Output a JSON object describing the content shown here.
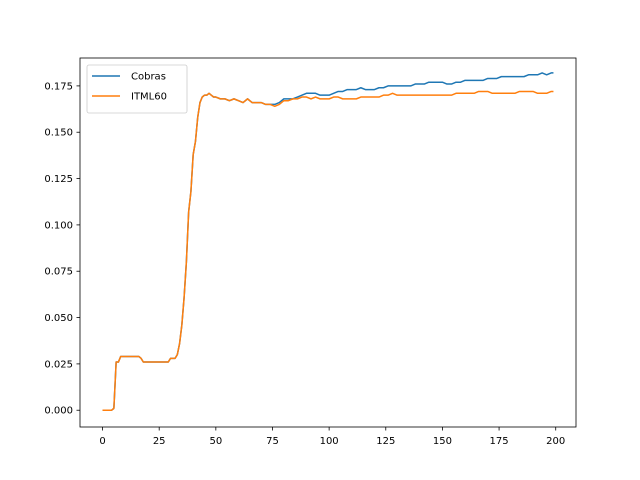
{
  "chart_data": {
    "type": "line",
    "title": "",
    "xlabel": "",
    "ylabel": "",
    "xlim": [
      -9.95,
      208.95
    ],
    "ylim": [
      -0.00905,
      0.19005
    ],
    "xticks": [
      0,
      25,
      50,
      75,
      100,
      125,
      150,
      175,
      200
    ],
    "yticks": [
      0.0,
      0.025,
      0.05,
      0.075,
      0.1,
      0.125,
      0.15,
      0.175
    ],
    "ytick_labels": [
      "0.000",
      "0.025",
      "0.050",
      "0.075",
      "0.100",
      "0.125",
      "0.150",
      "0.175"
    ],
    "grid": false,
    "legend_position": "top-left",
    "series": [
      {
        "name": "Cobras",
        "color": "#1f77b4",
        "points": [
          [
            0,
            0
          ],
          [
            1,
            0
          ],
          [
            2,
            0
          ],
          [
            3,
            0
          ],
          [
            4,
            0
          ],
          [
            5,
            0.001
          ],
          [
            6,
            0.026
          ],
          [
            7,
            0.026
          ],
          [
            8,
            0.029
          ],
          [
            9,
            0.029
          ],
          [
            10,
            0.029
          ],
          [
            11,
            0.029
          ],
          [
            12,
            0.029
          ],
          [
            13,
            0.029
          ],
          [
            14,
            0.029
          ],
          [
            15,
            0.029
          ],
          [
            16,
            0.029
          ],
          [
            17,
            0.028
          ],
          [
            18,
            0.026
          ],
          [
            19,
            0.026
          ],
          [
            20,
            0.026
          ],
          [
            21,
            0.026
          ],
          [
            22,
            0.026
          ],
          [
            23,
            0.026
          ],
          [
            24,
            0.026
          ],
          [
            25,
            0.026
          ],
          [
            26,
            0.026
          ],
          [
            27,
            0.026
          ],
          [
            28,
            0.026
          ],
          [
            29,
            0.026
          ],
          [
            30,
            0.028
          ],
          [
            31,
            0.028
          ],
          [
            32,
            0.028
          ],
          [
            33,
            0.03
          ],
          [
            34,
            0.036
          ],
          [
            35,
            0.046
          ],
          [
            36,
            0.061
          ],
          [
            37,
            0.08
          ],
          [
            38,
            0.107
          ],
          [
            39,
            0.118
          ],
          [
            40,
            0.138
          ],
          [
            41,
            0.145
          ],
          [
            42,
            0.158
          ],
          [
            43,
            0.166
          ],
          [
            44,
            0.169
          ],
          [
            45,
            0.17
          ],
          [
            46,
            0.17
          ],
          [
            47,
            0.171
          ],
          [
            48,
            0.17
          ],
          [
            49,
            0.169
          ],
          [
            50,
            0.169
          ],
          [
            52,
            0.168
          ],
          [
            54,
            0.168
          ],
          [
            56,
            0.167
          ],
          [
            58,
            0.168
          ],
          [
            60,
            0.167
          ],
          [
            62,
            0.166
          ],
          [
            64,
            0.168
          ],
          [
            66,
            0.166
          ],
          [
            68,
            0.166
          ],
          [
            70,
            0.166
          ],
          [
            72,
            0.165
          ],
          [
            74,
            0.165
          ],
          [
            76,
            0.165
          ],
          [
            78,
            0.166
          ],
          [
            80,
            0.168
          ],
          [
            82,
            0.168
          ],
          [
            84,
            0.168
          ],
          [
            86,
            0.169
          ],
          [
            88,
            0.17
          ],
          [
            90,
            0.171
          ],
          [
            92,
            0.171
          ],
          [
            94,
            0.171
          ],
          [
            96,
            0.17
          ],
          [
            98,
            0.17
          ],
          [
            100,
            0.17
          ],
          [
            102,
            0.171
          ],
          [
            104,
            0.172
          ],
          [
            106,
            0.172
          ],
          [
            108,
            0.173
          ],
          [
            110,
            0.173
          ],
          [
            112,
            0.173
          ],
          [
            114,
            0.174
          ],
          [
            116,
            0.173
          ],
          [
            118,
            0.173
          ],
          [
            120,
            0.173
          ],
          [
            122,
            0.174
          ],
          [
            124,
            0.174
          ],
          [
            126,
            0.175
          ],
          [
            128,
            0.175
          ],
          [
            130,
            0.175
          ],
          [
            132,
            0.175
          ],
          [
            134,
            0.175
          ],
          [
            136,
            0.175
          ],
          [
            138,
            0.176
          ],
          [
            140,
            0.176
          ],
          [
            142,
            0.176
          ],
          [
            144,
            0.177
          ],
          [
            146,
            0.177
          ],
          [
            148,
            0.177
          ],
          [
            150,
            0.177
          ],
          [
            152,
            0.176
          ],
          [
            154,
            0.176
          ],
          [
            156,
            0.177
          ],
          [
            158,
            0.177
          ],
          [
            160,
            0.178
          ],
          [
            162,
            0.178
          ],
          [
            164,
            0.178
          ],
          [
            166,
            0.178
          ],
          [
            168,
            0.178
          ],
          [
            170,
            0.179
          ],
          [
            172,
            0.179
          ],
          [
            174,
            0.179
          ],
          [
            176,
            0.18
          ],
          [
            178,
            0.18
          ],
          [
            180,
            0.18
          ],
          [
            182,
            0.18
          ],
          [
            184,
            0.18
          ],
          [
            186,
            0.18
          ],
          [
            188,
            0.181
          ],
          [
            190,
            0.181
          ],
          [
            192,
            0.181
          ],
          [
            194,
            0.182
          ],
          [
            196,
            0.181
          ],
          [
            198,
            0.182
          ],
          [
            199,
            0.182
          ]
        ]
      },
      {
        "name": "ITML60",
        "color": "#ff7f0e",
        "points": [
          [
            0,
            0
          ],
          [
            1,
            0
          ],
          [
            2,
            0
          ],
          [
            3,
            0
          ],
          [
            4,
            0
          ],
          [
            5,
            0.001
          ],
          [
            6,
            0.026
          ],
          [
            7,
            0.026
          ],
          [
            8,
            0.029
          ],
          [
            9,
            0.029
          ],
          [
            10,
            0.029
          ],
          [
            11,
            0.029
          ],
          [
            12,
            0.029
          ],
          [
            13,
            0.029
          ],
          [
            14,
            0.029
          ],
          [
            15,
            0.029
          ],
          [
            16,
            0.029
          ],
          [
            17,
            0.028
          ],
          [
            18,
            0.026
          ],
          [
            19,
            0.026
          ],
          [
            20,
            0.026
          ],
          [
            21,
            0.026
          ],
          [
            22,
            0.026
          ],
          [
            23,
            0.026
          ],
          [
            24,
            0.026
          ],
          [
            25,
            0.026
          ],
          [
            26,
            0.026
          ],
          [
            27,
            0.026
          ],
          [
            28,
            0.026
          ],
          [
            29,
            0.026
          ],
          [
            30,
            0.028
          ],
          [
            31,
            0.028
          ],
          [
            32,
            0.028
          ],
          [
            33,
            0.03
          ],
          [
            34,
            0.036
          ],
          [
            35,
            0.046
          ],
          [
            36,
            0.061
          ],
          [
            37,
            0.08
          ],
          [
            38,
            0.107
          ],
          [
            39,
            0.118
          ],
          [
            40,
            0.138
          ],
          [
            41,
            0.145
          ],
          [
            42,
            0.158
          ],
          [
            43,
            0.166
          ],
          [
            44,
            0.169
          ],
          [
            45,
            0.17
          ],
          [
            46,
            0.17
          ],
          [
            47,
            0.171
          ],
          [
            48,
            0.17
          ],
          [
            49,
            0.169
          ],
          [
            50,
            0.169
          ],
          [
            52,
            0.168
          ],
          [
            54,
            0.168
          ],
          [
            56,
            0.167
          ],
          [
            58,
            0.168
          ],
          [
            60,
            0.167
          ],
          [
            62,
            0.166
          ],
          [
            64,
            0.168
          ],
          [
            66,
            0.166
          ],
          [
            68,
            0.166
          ],
          [
            70,
            0.166
          ],
          [
            72,
            0.165
          ],
          [
            74,
            0.165
          ],
          [
            76,
            0.164
          ],
          [
            78,
            0.165
          ],
          [
            80,
            0.167
          ],
          [
            82,
            0.167
          ],
          [
            84,
            0.168
          ],
          [
            86,
            0.168
          ],
          [
            88,
            0.169
          ],
          [
            90,
            0.169
          ],
          [
            92,
            0.168
          ],
          [
            94,
            0.169
          ],
          [
            96,
            0.168
          ],
          [
            98,
            0.168
          ],
          [
            100,
            0.168
          ],
          [
            102,
            0.169
          ],
          [
            104,
            0.169
          ],
          [
            106,
            0.168
          ],
          [
            108,
            0.168
          ],
          [
            110,
            0.168
          ],
          [
            112,
            0.168
          ],
          [
            114,
            0.169
          ],
          [
            116,
            0.169
          ],
          [
            118,
            0.169
          ],
          [
            120,
            0.169
          ],
          [
            122,
            0.169
          ],
          [
            124,
            0.17
          ],
          [
            126,
            0.17
          ],
          [
            128,
            0.171
          ],
          [
            130,
            0.17
          ],
          [
            132,
            0.17
          ],
          [
            134,
            0.17
          ],
          [
            136,
            0.17
          ],
          [
            138,
            0.17
          ],
          [
            140,
            0.17
          ],
          [
            142,
            0.17
          ],
          [
            144,
            0.17
          ],
          [
            146,
            0.17
          ],
          [
            148,
            0.17
          ],
          [
            150,
            0.17
          ],
          [
            152,
            0.17
          ],
          [
            154,
            0.17
          ],
          [
            156,
            0.171
          ],
          [
            158,
            0.171
          ],
          [
            160,
            0.171
          ],
          [
            162,
            0.171
          ],
          [
            164,
            0.171
          ],
          [
            166,
            0.172
          ],
          [
            168,
            0.172
          ],
          [
            170,
            0.172
          ],
          [
            172,
            0.171
          ],
          [
            174,
            0.171
          ],
          [
            176,
            0.171
          ],
          [
            178,
            0.171
          ],
          [
            180,
            0.171
          ],
          [
            182,
            0.171
          ],
          [
            184,
            0.172
          ],
          [
            186,
            0.172
          ],
          [
            188,
            0.172
          ],
          [
            190,
            0.172
          ],
          [
            192,
            0.171
          ],
          [
            194,
            0.171
          ],
          [
            196,
            0.171
          ],
          [
            198,
            0.172
          ],
          [
            199,
            0.172
          ]
        ]
      }
    ]
  }
}
